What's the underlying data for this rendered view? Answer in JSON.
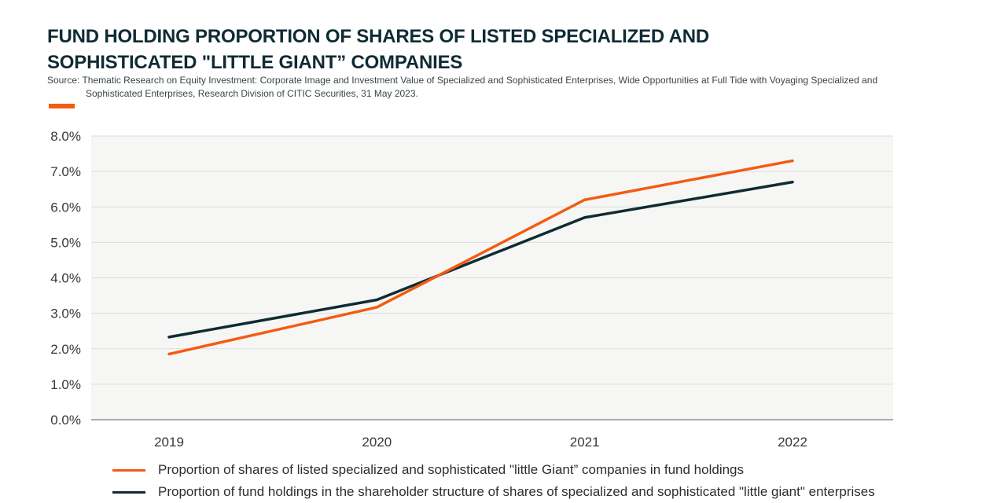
{
  "title_line1": "FUND HOLDING PROPORTION OF SHARES OF LISTED SPECIALIZED AND",
  "title_line2": "SOPHISTICATED \"LITTLE GIANT” COMPANIES",
  "source_line1": "Source: Thematic Research on Equity Investment: Corporate Image and Investment Value of Specialized and Sophisticated Enterprises, Wide Opportunities at Full Tide with Voyaging Specialized and",
  "source_line2": "Sophisticated Enterprises, Research Division of CITIC Securities, 31 May 2023.",
  "colors": {
    "accent": "#f25c12",
    "dark": "#0f2b33",
    "plot_bg": "#f6f7f5",
    "grid": "#dcdddb"
  },
  "chart_data": {
    "type": "line",
    "categories": [
      "2019",
      "2020",
      "2021",
      "2022"
    ],
    "series": [
      {
        "name": " Proportion of shares of listed specialized and sophisticated \"little Giant” companies in fund holdings",
        "values": [
          1.85,
          3.17,
          6.2,
          7.3
        ],
        "color": "#f25c12"
      },
      {
        "name": "Proportion of fund holdings in the shareholder structure of shares of specialized and sophisticated \"little giant\" enterprises",
        "values": [
          2.33,
          3.38,
          5.7,
          6.7
        ],
        "color": "#0f2b33"
      }
    ],
    "ylim": [
      0,
      8
    ],
    "yticks": [
      "0.0%",
      "1.0%",
      "2.0%",
      "3.0%",
      "4.0%",
      "5.0%",
      "6.0%",
      "7.0%",
      "8.0%"
    ],
    "grid": true,
    "legend": "bottom"
  }
}
